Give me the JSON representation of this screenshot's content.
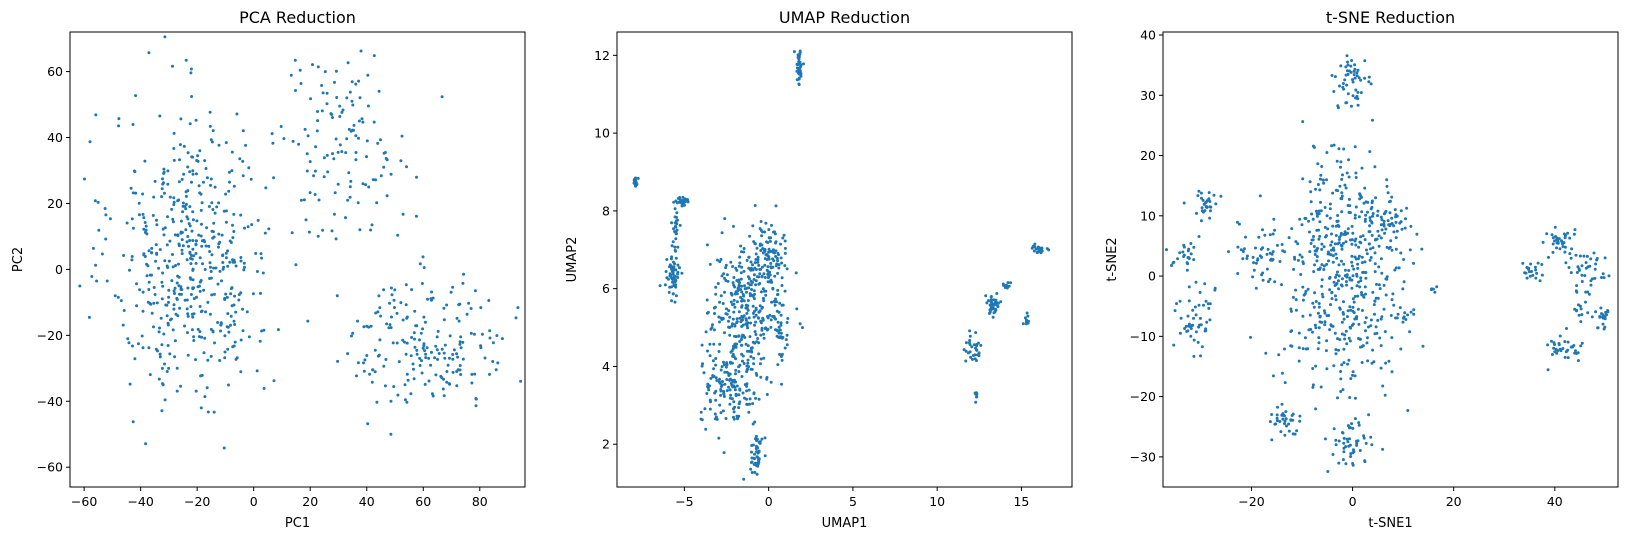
{
  "chart_data": [
    {
      "type": "scatter",
      "title": "PCA Reduction",
      "xlabel": "PC1",
      "ylabel": "PC2",
      "xlim": [
        -65,
        96
      ],
      "ylim": [
        -66,
        72
      ],
      "xticks": [
        -60,
        -40,
        -20,
        0,
        20,
        40,
        60,
        80
      ],
      "yticks": [
        -60,
        -40,
        -20,
        0,
        20,
        40,
        60
      ],
      "color": "#1f77b4",
      "grid": false,
      "clusters": [
        {
          "cx": -22,
          "cy": 4,
          "sx": 14,
          "sy": 22,
          "n": 520
        },
        {
          "cx": 32,
          "cy": 38,
          "sx": 12,
          "sy": 14,
          "n": 130
        },
        {
          "cx": 62,
          "cy": -22,
          "sx": 14,
          "sy": 10,
          "n": 200
        }
      ]
    },
    {
      "type": "scatter",
      "title": "UMAP Reduction",
      "xlabel": "UMAP1",
      "ylabel": "UMAP2",
      "xlim": [
        -9,
        18
      ],
      "ylim": [
        0.9,
        12.6
      ],
      "xticks": [
        -5,
        0,
        5,
        10,
        15
      ],
      "yticks": [
        2,
        4,
        6,
        8,
        10,
        12
      ],
      "color": "#1f77b4",
      "grid": false,
      "clusters": [
        {
          "cx": -1.2,
          "cy": 5.6,
          "sx": 1.1,
          "sy": 0.9,
          "n": 330
        },
        {
          "cx": -2.2,
          "cy": 3.6,
          "sx": 0.9,
          "sy": 0.6,
          "n": 170
        },
        {
          "cx": 0.1,
          "cy": 6.8,
          "sx": 0.5,
          "sy": 0.4,
          "n": 80
        },
        {
          "cx": -0.7,
          "cy": 1.8,
          "sx": 0.2,
          "sy": 0.25,
          "n": 45
        },
        {
          "cx": 0.7,
          "cy": 4.8,
          "sx": 0.15,
          "sy": 0.3,
          "n": 25
        },
        {
          "cx": -5.7,
          "cy": 6.3,
          "sx": 0.18,
          "sy": 0.25,
          "n": 60
        },
        {
          "cx": -5.5,
          "cy": 7.5,
          "sx": 0.1,
          "sy": 0.3,
          "n": 25
        },
        {
          "cx": -5.1,
          "cy": 8.25,
          "sx": 0.2,
          "sy": 0.06,
          "n": 25
        },
        {
          "cx": -7.9,
          "cy": 8.75,
          "sx": 0.05,
          "sy": 0.06,
          "n": 15
        },
        {
          "cx": 1.8,
          "cy": 11.7,
          "sx": 0.1,
          "sy": 0.25,
          "n": 40
        },
        {
          "cx": 13.3,
          "cy": 5.6,
          "sx": 0.2,
          "sy": 0.15,
          "n": 40
        },
        {
          "cx": 12.1,
          "cy": 4.4,
          "sx": 0.3,
          "sy": 0.2,
          "n": 30
        },
        {
          "cx": 12.3,
          "cy": 3.3,
          "sx": 0.05,
          "sy": 0.1,
          "n": 10
        },
        {
          "cx": 16.1,
          "cy": 7.0,
          "sx": 0.25,
          "sy": 0.08,
          "n": 25
        },
        {
          "cx": 15.3,
          "cy": 5.2,
          "sx": 0.06,
          "sy": 0.1,
          "n": 10
        },
        {
          "cx": 14.1,
          "cy": 6.1,
          "sx": 0.15,
          "sy": 0.08,
          "n": 10
        }
      ]
    },
    {
      "type": "scatter",
      "title": "t-SNE Reduction",
      "xlabel": "t-SNE1",
      "ylabel": "t-SNE2",
      "xlim": [
        -37.5,
        52.5
      ],
      "ylim": [
        -35,
        40.5
      ],
      "xticks": [
        -20,
        0,
        20,
        40
      ],
      "yticks": [
        -30,
        -20,
        -10,
        0,
        10,
        20,
        30,
        40
      ],
      "color": "#1f77b4",
      "grid": false,
      "clusters": [
        {
          "cx": -2,
          "cy": 0,
          "sx": 6,
          "sy": 10,
          "n": 520
        },
        {
          "cx": 0,
          "cy": 33,
          "sx": 1.6,
          "sy": 2.2,
          "n": 50
        },
        {
          "cx": -1,
          "cy": -28,
          "sx": 2.2,
          "sy": 1.8,
          "n": 50
        },
        {
          "cx": -14,
          "cy": -24,
          "sx": 1.5,
          "sy": 1.3,
          "n": 35
        },
        {
          "cx": 8,
          "cy": 10,
          "sx": 2,
          "sy": 2,
          "n": 45
        },
        {
          "cx": -18,
          "cy": 4,
          "sx": 2.5,
          "sy": 2.5,
          "n": 45
        },
        {
          "cx": -29,
          "cy": 12,
          "sx": 1.3,
          "sy": 1.3,
          "n": 30
        },
        {
          "cx": -33,
          "cy": 3.5,
          "sx": 1.2,
          "sy": 1.5,
          "n": 25
        },
        {
          "cx": -31,
          "cy": -7,
          "sx": 2,
          "sy": 2.8,
          "n": 50
        },
        {
          "cx": 35,
          "cy": 1,
          "sx": 1,
          "sy": 1.2,
          "n": 20
        },
        {
          "cx": 41,
          "cy": 6,
          "sx": 1.6,
          "sy": 1.5,
          "n": 35
        },
        {
          "cx": 46,
          "cy": 1,
          "sx": 1.8,
          "sy": 2,
          "n": 40
        },
        {
          "cx": 42,
          "cy": -12,
          "sx": 2,
          "sy": 1.2,
          "n": 35
        },
        {
          "cx": 49,
          "cy": -7,
          "sx": 1.2,
          "sy": 1,
          "n": 20
        },
        {
          "cx": 45,
          "cy": -5,
          "sx": 0.8,
          "sy": 1,
          "n": 12
        },
        {
          "cx": 16,
          "cy": -2,
          "sx": 0.3,
          "sy": 0.4,
          "n": 5
        },
        {
          "cx": 10,
          "cy": -6,
          "sx": 1,
          "sy": 1.5,
          "n": 15
        }
      ]
    }
  ]
}
